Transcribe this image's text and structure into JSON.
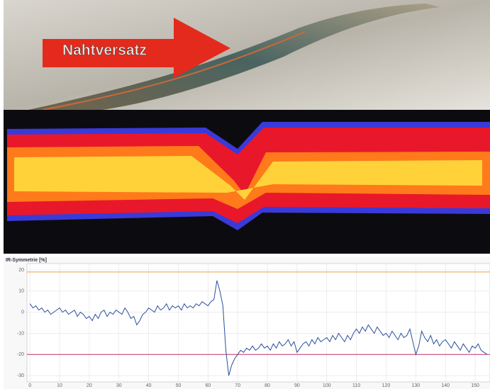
{
  "header": {
    "label": "Nahtversatz"
  },
  "chart_data": {
    "type": "line",
    "title": "IR-Symmetrie [%]",
    "x": [
      0,
      1,
      2,
      3,
      4,
      5,
      6,
      7,
      8,
      9,
      10,
      11,
      12,
      13,
      14,
      15,
      16,
      17,
      18,
      19,
      20,
      21,
      22,
      23,
      24,
      25,
      26,
      27,
      28,
      29,
      30,
      31,
      32,
      33,
      34,
      35,
      36,
      37,
      38,
      39,
      40,
      41,
      42,
      43,
      44,
      45,
      46,
      47,
      48,
      49,
      50,
      51,
      52,
      53,
      54,
      55,
      56,
      57,
      58,
      59,
      60,
      61,
      62,
      63,
      64,
      65,
      66,
      67,
      68,
      69,
      70,
      71,
      72,
      73,
      74,
      75,
      76,
      77,
      78,
      79,
      80,
      81,
      82,
      83,
      84,
      85,
      86,
      87,
      88,
      89,
      90,
      91,
      92,
      93,
      94,
      95,
      96,
      97,
      98,
      99,
      100,
      101,
      102,
      103,
      104,
      105,
      106,
      107,
      108,
      109,
      110,
      111,
      112,
      113,
      114,
      115,
      116,
      117,
      118,
      119,
      120,
      121,
      122,
      123,
      124,
      125,
      126,
      127,
      128,
      129,
      130,
      131,
      132,
      133,
      134,
      135,
      136,
      137,
      138,
      139,
      140,
      141,
      142,
      143,
      144,
      145,
      146,
      147,
      148,
      149,
      150,
      151,
      152,
      153,
      154
    ],
    "series": [
      {
        "color": "#2a4f9e",
        "values": [
          4,
          2,
          3,
          1,
          2,
          0,
          1,
          -1,
          0,
          1,
          2,
          0,
          1,
          -1,
          0,
          1,
          -2,
          0,
          -1,
          -3,
          -2,
          -4,
          -1,
          -3,
          0,
          1,
          -2,
          0,
          -1,
          1,
          0,
          -1,
          2,
          0,
          -3,
          -2,
          -6,
          -4,
          -1,
          0,
          2,
          1,
          0,
          3,
          1,
          2,
          4,
          1,
          3,
          2,
          3,
          1,
          4,
          2,
          3,
          2,
          4,
          3,
          5,
          4,
          3,
          5,
          6,
          15,
          10,
          3,
          -18,
          -30,
          -25,
          -22,
          -20,
          -18,
          -19,
          -17,
          -18,
          -16,
          -18,
          -17,
          -15,
          -17,
          -16,
          -18,
          -15,
          -17,
          -14,
          -16,
          -15,
          -13,
          -16,
          -14,
          -19,
          -17,
          -15,
          -14,
          -16,
          -13,
          -15,
          -12,
          -14,
          -13,
          -12,
          -14,
          -11,
          -13,
          -10,
          -12,
          -14,
          -11,
          -13,
          -10,
          -8,
          -10,
          -7,
          -9,
          -6,
          -8,
          -10,
          -7,
          -9,
          -11,
          -10,
          -12,
          -9,
          -11,
          -13,
          -10,
          -12,
          -11,
          -8,
          -14,
          -20,
          -16,
          -9,
          -12,
          -14,
          -11,
          -15,
          -13,
          -16,
          -14,
          -13,
          -15,
          -17,
          -14,
          -16,
          -18,
          -15,
          -17,
          -19,
          -16,
          -17,
          -15,
          -18,
          -19,
          -20
        ]
      }
    ],
    "reference_lines": [
      {
        "value": 19,
        "color": "#e8a040"
      },
      {
        "value": -20,
        "color": "#c0306a"
      }
    ],
    "xlim": [
      -1,
      155
    ],
    "xticks": [
      0,
      10,
      20,
      30,
      40,
      50,
      60,
      70,
      80,
      90,
      100,
      110,
      120,
      130,
      140,
      150
    ],
    "ylim": [
      -33,
      23
    ],
    "yticks": [
      -30,
      -20,
      -10,
      0,
      10,
      20
    ],
    "grid": true
  }
}
